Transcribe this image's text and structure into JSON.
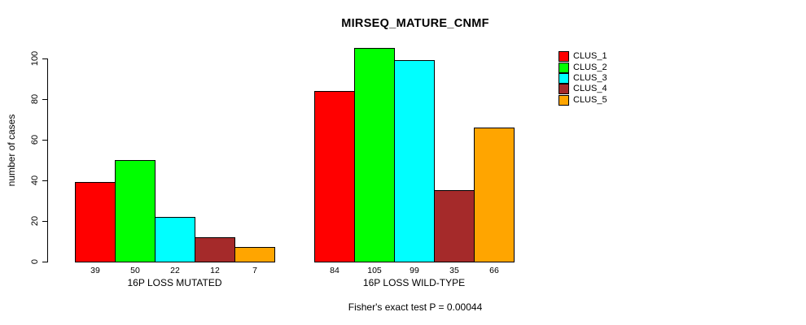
{
  "title": "MIRSEQ_MATURE_CNMF",
  "y_axis_label": "number of cases",
  "footer_note": "Fisher's exact test P = 0.00044",
  "chart_data": {
    "type": "bar",
    "title": "MIRSEQ_MATURE_CNMF",
    "xlabel": "",
    "ylabel": "number of cases",
    "ylim": [
      0,
      100
    ],
    "yticks": [
      0,
      20,
      40,
      60,
      80,
      100
    ],
    "grid": false,
    "bar_value_labels": true,
    "legend_position": "right",
    "categories": [
      "16P LOSS MUTATED",
      "16P LOSS WILD-TYPE"
    ],
    "series": [
      {
        "name": "CLUS_1",
        "color": "#FF0000",
        "values": [
          39,
          84
        ]
      },
      {
        "name": "CLUS_2",
        "color": "#00FF00",
        "values": [
          50,
          105
        ]
      },
      {
        "name": "CLUS_3",
        "color": "#00FFFF",
        "values": [
          22,
          99
        ]
      },
      {
        "name": "CLUS_4",
        "color": "#A52A2A",
        "values": [
          12,
          35
        ]
      },
      {
        "name": "CLUS_5",
        "color": "#FFA500",
        "values": [
          7,
          66
        ]
      }
    ],
    "annotation": "Fisher's exact test P = 0.00044"
  }
}
